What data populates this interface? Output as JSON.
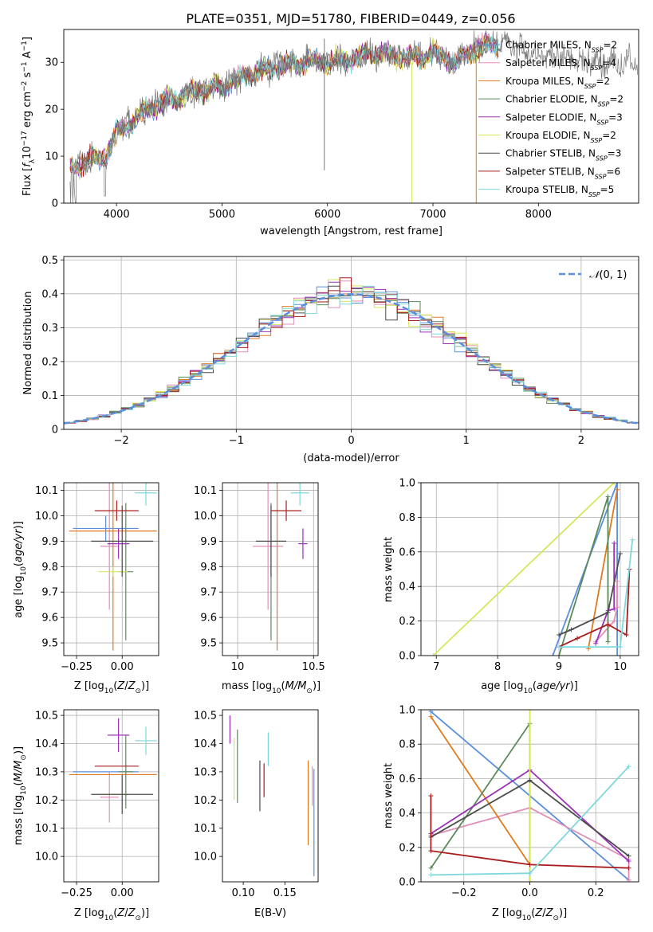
{
  "title": "PLATE=0351, MJD=51780, FIBERID=0449, z=0.056",
  "models": [
    {
      "imf": "Chabrier",
      "lib": "MILES",
      "n": 2,
      "color": "#5b8fdb"
    },
    {
      "imf": "Salpeter",
      "lib": "MILES",
      "n": 4,
      "color": "#e08fb8"
    },
    {
      "imf": "Kroupa",
      "lib": "MILES",
      "n": 2,
      "color": "#e07a1f"
    },
    {
      "imf": "Chabrier",
      "lib": "ELODIE",
      "n": 2,
      "color": "#5a8a5a"
    },
    {
      "imf": "Salpeter",
      "lib": "ELODIE",
      "n": 3,
      "color": "#9b30b8"
    },
    {
      "imf": "Kroupa",
      "lib": "ELODIE",
      "n": 2,
      "color": "#d4e85a"
    },
    {
      "imf": "Chabrier",
      "lib": "STELIB",
      "n": 3,
      "color": "#4d4d4d"
    },
    {
      "imf": "Salpeter",
      "lib": "STELIB",
      "n": 6,
      "color": "#a81c1c"
    },
    {
      "imf": "Kroupa",
      "lib": "STELIB",
      "n": 5,
      "color": "#7fd8dc"
    }
  ],
  "chart_data": [
    {
      "id": "spectrum",
      "type": "line",
      "xlabel": "wavelength [Angstrom, rest frame]",
      "ylabel": "Flux [f_λ 10^-17 erg cm^-2 s^-1 A^-1]",
      "xlim": [
        3500,
        8950
      ],
      "ylim": [
        0,
        37
      ],
      "xticks": [
        4000,
        5000,
        6000,
        7000,
        8000
      ],
      "yticks": [
        0,
        10,
        20,
        30
      ],
      "legend": "right",
      "envelope": {
        "x": [
          3560,
          3700,
          3900,
          4000,
          4300,
          4500,
          4800,
          5000,
          5200,
          5500,
          5800,
          6000,
          6300,
          6500,
          6800,
          7000,
          7200,
          7400,
          7600,
          7800,
          8000,
          8200,
          8500,
          8900
        ],
        "y": [
          7,
          9,
          10,
          15,
          20,
          22,
          24,
          25,
          27,
          29,
          30,
          30,
          31,
          32,
          31,
          32,
          30,
          33,
          34,
          33,
          32,
          31,
          30,
          30
        ]
      },
      "spikes": [
        {
          "x": 5970,
          "y0": 7,
          "y1": 35
        },
        {
          "x": 6800,
          "y0": 0,
          "y1": 30
        },
        {
          "x": 7410,
          "y0": 0,
          "y1": 31
        }
      ]
    },
    {
      "id": "residuals",
      "type": "histogram",
      "xlabel": "(data-model)/error",
      "ylabel": "Normed distribution",
      "xlim": [
        -2.5,
        2.5
      ],
      "ylim": [
        0,
        0.51
      ],
      "xticks": [
        -2,
        -1,
        0,
        1,
        2
      ],
      "yticks": [
        0.0,
        0.1,
        0.2,
        0.3,
        0.4,
        0.5
      ],
      "bin_width": 0.1,
      "reference_label": "N(0,1)",
      "reference_color": "#5b8fdb",
      "legend": "top-right"
    },
    {
      "id": "z-age",
      "type": "scatter-errorbar",
      "xlabel": "Z [log10(Z/Zsun)]",
      "ylabel": "age [log10(age/yr)]",
      "xlim": [
        -0.32,
        0.2
      ],
      "ylim": [
        9.45,
        10.13
      ],
      "xticks": [
        -0.25,
        0.0
      ],
      "yticks": [
        9.5,
        9.6,
        9.7,
        9.8,
        9.9,
        10.0,
        10.1
      ],
      "points": [
        {
          "x": -0.09,
          "xerr": 0.18,
          "y": 9.95,
          "yerr": 0.05
        },
        {
          "x": -0.07,
          "xerr": 0.05,
          "y": 9.88,
          "yerr": 0.25
        },
        {
          "x": -0.05,
          "xerr": 0.24,
          "y": 9.94,
          "yerr": 0.47
        },
        {
          "x": 0.02,
          "xerr": 0.04,
          "y": 9.78,
          "yerr": 0.27
        },
        {
          "x": -0.02,
          "xerr": 0.06,
          "y": 9.89,
          "yerr": 0.06
        },
        {
          "x": -0.05,
          "xerr": 0.08,
          "y": 9.78,
          "yerr": 0.02
        },
        {
          "x": 0.0,
          "xerr": 0.17,
          "y": 9.9,
          "yerr": 0.14
        },
        {
          "x": -0.03,
          "xerr": 0.12,
          "y": 10.02,
          "yerr": 0.04
        },
        {
          "x": 0.13,
          "xerr": 0.06,
          "y": 10.09,
          "yerr": 0.05
        }
      ]
    },
    {
      "id": "mass-age",
      "type": "scatter-errorbar",
      "xlabel": "mass [log10(M/Msun)]",
      "ylabel": "",
      "xlim": [
        9.9,
        10.53
      ],
      "ylim": [
        9.45,
        10.13
      ],
      "xticks": [
        10.0,
        10.5
      ],
      "yticks": [
        9.5,
        9.6,
        9.7,
        9.8,
        9.9,
        10.0,
        10.1
      ],
      "points": [
        {
          "x": 9.97,
          "xerr": 0.0,
          "y": 9.95,
          "yerr": 0.0
        },
        {
          "x": 10.2,
          "xerr": 0.1,
          "y": 9.88,
          "yerr": 0.25
        },
        {
          "x": 10.26,
          "xerr": 0.0,
          "y": 9.94,
          "yerr": 0.47
        },
        {
          "x": 10.22,
          "xerr": 0.0,
          "y": 9.78,
          "yerr": 0.27
        },
        {
          "x": 10.43,
          "xerr": 0.03,
          "y": 9.89,
          "yerr": 0.06
        },
        {
          "x": 10.22,
          "xerr": 0.0,
          "y": 9.78,
          "yerr": 0.02
        },
        {
          "x": 10.22,
          "xerr": 0.1,
          "y": 9.9,
          "yerr": 0.14
        },
        {
          "x": 10.32,
          "xerr": 0.1,
          "y": 10.02,
          "yerr": 0.04
        },
        {
          "x": 10.41,
          "xerr": 0.06,
          "y": 10.09,
          "yerr": 0.05
        }
      ]
    },
    {
      "id": "age-weight",
      "type": "line",
      "xlabel": "age [log10(age/yr)]",
      "ylabel": "mass weight",
      "xlim": [
        6.75,
        10.3
      ],
      "ylim": [
        0,
        1.0
      ],
      "xticks": [
        7,
        8,
        9,
        10
      ],
      "yticks": [
        0.0,
        0.2,
        0.4,
        0.6,
        0.8,
        1.0
      ],
      "series": [
        {
          "x": [
            8.9,
            9.95,
            9.95
          ],
          "y": [
            0.0,
            1.0,
            0.0
          ]
        },
        {
          "x": [
            9.6,
            9.9,
            9.95,
            9.95
          ],
          "y": [
            0.08,
            0.2,
            0.28,
            0.43
          ]
        },
        {
          "x": [
            9.48,
            9.95
          ],
          "y": [
            0.04,
            0.96
          ]
        },
        {
          "x": [
            9.0,
            9.8,
            9.8
          ],
          "y": [
            0.0,
            0.92,
            0.08
          ]
        },
        {
          "x": [
            9.6,
            9.8,
            9.9,
            9.9
          ],
          "y": [
            0.07,
            0.26,
            0.27,
            0.65
          ]
        },
        {
          "x": [
            6.95,
            9.9
          ],
          "y": [
            0.0,
            1.0
          ]
        },
        {
          "x": [
            9.0,
            9.2,
            9.8,
            10.0
          ],
          "y": [
            0.12,
            0.15,
            0.25,
            0.59
          ]
        },
        {
          "x": [
            9.0,
            9.3,
            9.8,
            10.1,
            10.15
          ],
          "y": [
            0.05,
            0.1,
            0.18,
            0.12,
            0.5
          ]
        },
        {
          "x": [
            9.0,
            10.0,
            10.2
          ],
          "y": [
            0.05,
            0.05,
            0.67
          ]
        }
      ]
    },
    {
      "id": "z-mass",
      "type": "scatter-errorbar",
      "xlabel": "Z [log10(Z/Zsun)]",
      "ylabel": "mass [log10(M/Msun)]",
      "xlim": [
        -0.32,
        0.2
      ],
      "ylim": [
        9.91,
        10.52
      ],
      "xticks": [
        -0.25,
        0.0
      ],
      "yticks": [
        10.0,
        10.1,
        10.2,
        10.3,
        10.4,
        10.5
      ],
      "points": [
        {
          "x": -0.09,
          "xerr": 0.18,
          "y": 10.3,
          "yerr": 0.0
        },
        {
          "x": -0.07,
          "xerr": 0.05,
          "y": 10.21,
          "yerr": 0.09
        },
        {
          "x": -0.05,
          "xerr": 0.24,
          "y": 10.29,
          "yerr": 0.0
        },
        {
          "x": 0.02,
          "xerr": 0.04,
          "y": 10.3,
          "yerr": 0.13
        },
        {
          "x": -0.02,
          "xerr": 0.06,
          "y": 10.43,
          "yerr": 0.06
        },
        {
          "x": -0.05,
          "xerr": 0.08,
          "y": 10.22,
          "yerr": 0.0
        },
        {
          "x": 0.0,
          "xerr": 0.17,
          "y": 10.22,
          "yerr": 0.07
        },
        {
          "x": -0.03,
          "xerr": 0.12,
          "y": 10.32,
          "yerr": 0.0
        },
        {
          "x": 0.13,
          "xerr": 0.06,
          "y": 10.41,
          "yerr": 0.05
        }
      ]
    },
    {
      "id": "ebv-mass",
      "type": "errorbar",
      "xlabel": "E(B-V)",
      "ylabel": "",
      "xlim": [
        0.075,
        0.19
      ],
      "ylim": [
        9.91,
        10.52
      ],
      "xticks": [
        0.1,
        0.15
      ],
      "yticks": [
        10.0,
        10.1,
        10.2,
        10.3,
        10.4,
        10.5
      ],
      "points": [
        {
          "x": 0.185,
          "y": 10.12,
          "yerr": 0.19
        },
        {
          "x": 0.183,
          "y": 10.25,
          "yerr": 0.07
        },
        {
          "x": 0.178,
          "y": 10.19,
          "yerr": 0.15
        },
        {
          "x": 0.093,
          "y": 10.32,
          "yerr": 0.13
        },
        {
          "x": 0.084,
          "y": 10.45,
          "yerr": 0.05
        },
        {
          "x": 0.089,
          "y": 10.31,
          "yerr": 0.11
        },
        {
          "x": 0.12,
          "y": 10.25,
          "yerr": 0.09
        },
        {
          "x": 0.125,
          "y": 10.27,
          "yerr": 0.06
        },
        {
          "x": 0.13,
          "y": 10.38,
          "yerr": 0.06
        }
      ]
    },
    {
      "id": "z-weight",
      "type": "line",
      "xlabel": "Z [log10(Z/Zsun)]",
      "ylabel": "mass weight",
      "xlim": [
        -0.33,
        0.33
      ],
      "ylim": [
        0,
        1.0
      ],
      "xticks": [
        -0.2,
        0.0,
        0.2
      ],
      "yticks": [
        0.0,
        0.2,
        0.4,
        0.6,
        0.8,
        1.0
      ],
      "series": [
        {
          "x": [
            -0.3,
            0.3
          ],
          "y": [
            0.99,
            0.01
          ]
        },
        {
          "x": [
            -0.3,
            0.0,
            0.3,
            0.3
          ],
          "y": [
            0.27,
            0.43,
            0.13,
            0.01
          ]
        },
        {
          "x": [
            -0.3,
            0.0,
            0.0
          ],
          "y": [
            0.96,
            0.1,
            0.0
          ]
        },
        {
          "x": [
            -0.3,
            0.0,
            0.0
          ],
          "y": [
            0.08,
            0.92,
            0.0
          ]
        },
        {
          "x": [
            -0.3,
            0.0,
            0.3
          ],
          "y": [
            0.28,
            0.65,
            0.12
          ]
        },
        {
          "x": [
            0.0,
            0.0
          ],
          "y": [
            0.0,
            1.0
          ]
        },
        {
          "x": [
            -0.3,
            0.0,
            0.3
          ],
          "y": [
            0.26,
            0.59,
            0.15
          ]
        },
        {
          "x": [
            -0.3,
            -0.3,
            0.0,
            0.3
          ],
          "y": [
            0.5,
            0.18,
            0.1,
            0.08
          ]
        },
        {
          "x": [
            -0.3,
            0.0,
            0.3
          ],
          "y": [
            0.04,
            0.05,
            0.67
          ]
        }
      ]
    }
  ]
}
